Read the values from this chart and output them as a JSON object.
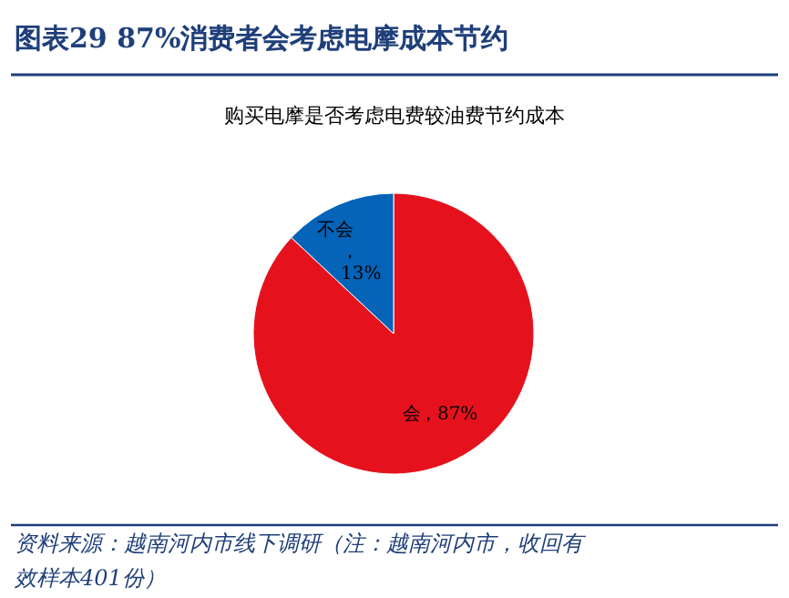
{
  "chart_data": {
    "type": "pie",
    "title": "图表29  87%消费者会考虑电摩成本节约",
    "subtitle": "购买电摩是否考虑电费较油费节约成本",
    "categories": [
      "会",
      "不会"
    ],
    "values": [
      87,
      13
    ],
    "colors": [
      "#e5121e",
      "#0563b8"
    ],
    "value_labels": [
      "，87%",
      "，13%"
    ],
    "annotations": [
      "资料来源：越南河内市线下调研（注：越南河内市，收回有效样本401份）"
    ]
  }
}
